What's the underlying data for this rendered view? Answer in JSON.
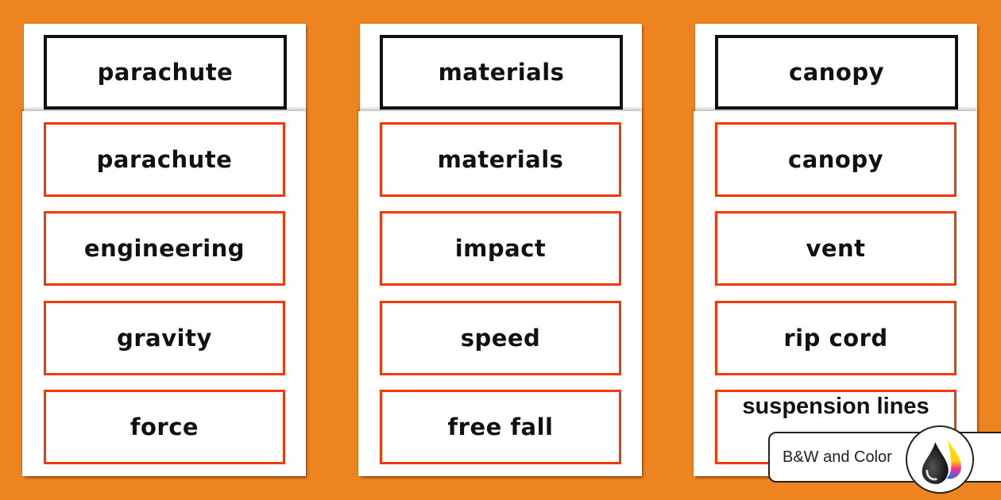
{
  "columns": [
    {
      "header": "parachute",
      "words": [
        "parachute",
        "engineering",
        "gravity",
        "force"
      ]
    },
    {
      "header": "materials",
      "words": [
        "materials",
        "impact",
        "speed",
        "free fall"
      ]
    },
    {
      "header": "canopy",
      "words": [
        "canopy",
        "vent",
        "rip cord",
        "suspension lines"
      ]
    }
  ],
  "badge": {
    "label": "B&W and Color",
    "icon": "ink-drops-icon"
  },
  "colors": {
    "background": "#ee8420",
    "card_border": "#f03a0a",
    "header_border": "#111111"
  }
}
